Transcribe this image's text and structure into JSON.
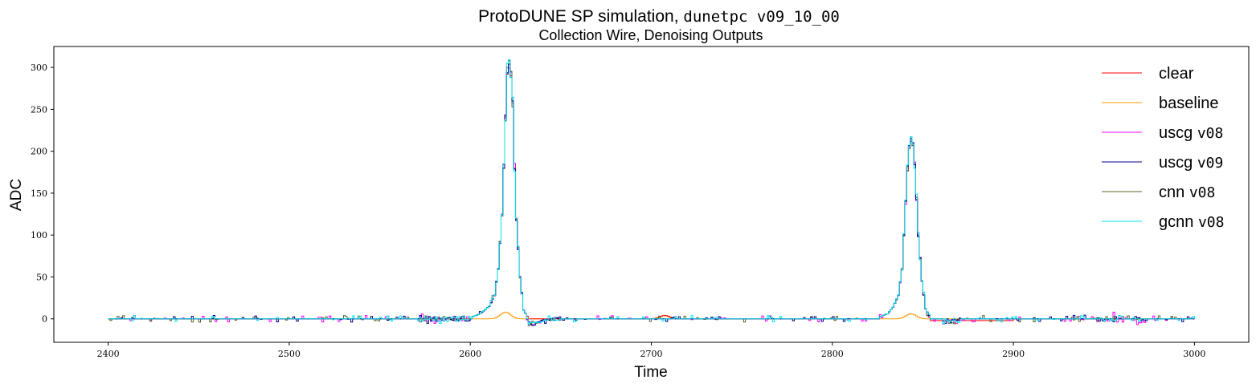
{
  "chart_data": {
    "type": "line",
    "title_prefix": "ProtoDUNE SP simulation, ",
    "title_code": "dunetpc v09_10_00",
    "subtitle": "Collection Wire, Denoising Outputs",
    "xlabel": "Time",
    "ylabel": "ADC",
    "xlim": [
      2370,
      3030
    ],
    "ylim": [
      -28,
      325
    ],
    "xticks": [
      2400,
      2500,
      2600,
      2700,
      2800,
      2900,
      3000
    ],
    "yticks": [
      0,
      50,
      100,
      150,
      200,
      250,
      300
    ],
    "grid": false,
    "legend_position": "top-right",
    "draw_style": "steps",
    "x_range": [
      2400,
      3000
    ],
    "peaks": [
      {
        "x": [
          2600,
          2605,
          2610,
          2613,
          2615,
          2617,
          2618,
          2619,
          2620,
          2621,
          2622,
          2623,
          2624,
          2625,
          2627,
          2629,
          2632
        ],
        "y": [
          2,
          6,
          15,
          28,
          60,
          125,
          185,
          240,
          300,
          308,
          290,
          260,
          180,
          120,
          50,
          10,
          0
        ]
      },
      {
        "x": [
          2825,
          2830,
          2833,
          2836,
          2838,
          2839,
          2840,
          2841,
          2842,
          2843,
          2844,
          2845,
          2846,
          2847,
          2849,
          2851,
          2854
        ],
        "y": [
          2,
          6,
          14,
          28,
          60,
          100,
          140,
          180,
          205,
          215,
          210,
          185,
          145,
          100,
          45,
          12,
          0
        ]
      }
    ],
    "series": [
      {
        "name": "clear",
        "code": "",
        "color": "#ff0000",
        "label_part": "clear"
      },
      {
        "name": "baseline",
        "code": "",
        "color": "#ff9900",
        "label_part": "baseline"
      },
      {
        "name": "uscg v08",
        "code": "v08",
        "color": "#ff00ff",
        "label_part": "uscg "
      },
      {
        "name": "uscg v09",
        "code": "v09",
        "color": "#00008b",
        "label_part": "uscg "
      },
      {
        "name": "cnn v08",
        "code": "v08",
        "color": "#556b2f",
        "label_part": "cnn "
      },
      {
        "name": "gcnn v08",
        "code": "v08",
        "color": "#00e5ee",
        "label_part": "gcnn "
      }
    ],
    "baseline_bumps": [
      {
        "x": 2619,
        "height": 8,
        "width": 4
      },
      {
        "x": 2843,
        "height": 6,
        "width": 4
      },
      {
        "x": 2707,
        "height": 4,
        "width": 3
      }
    ]
  }
}
